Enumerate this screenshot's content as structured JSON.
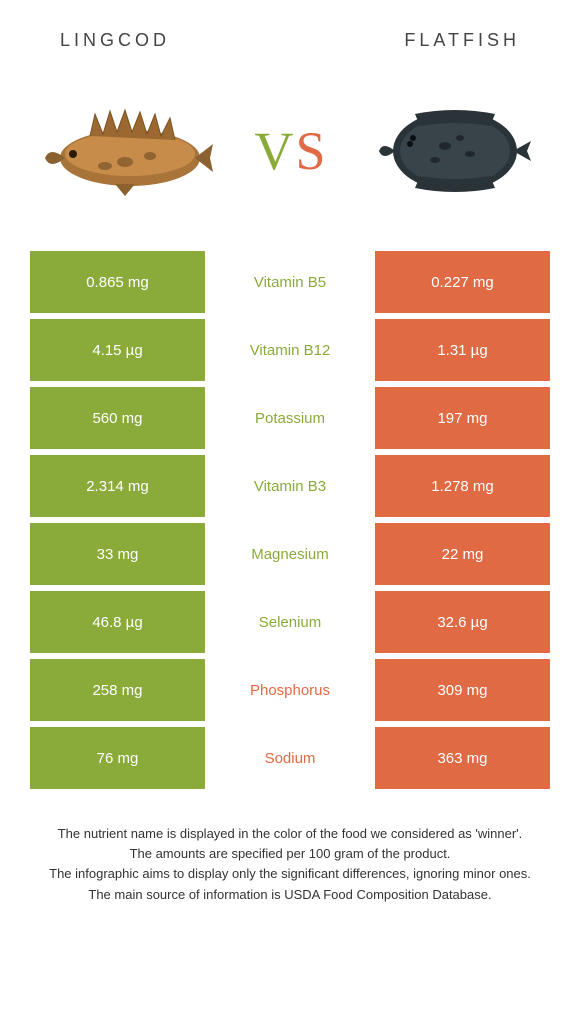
{
  "colors": {
    "left": "#8aab3a",
    "right": "#e06a44",
    "background": "#ffffff"
  },
  "header": {
    "left_title": "Lingcod",
    "right_title": "Flatfish"
  },
  "vs": {
    "v": "V",
    "s": "S"
  },
  "rows": [
    {
      "left": "0.865 mg",
      "label": "Vitamin B5",
      "right": "0.227 mg",
      "winner": "left"
    },
    {
      "left": "4.15 µg",
      "label": "Vitamin B12",
      "right": "1.31 µg",
      "winner": "left"
    },
    {
      "left": "560 mg",
      "label": "Potassium",
      "right": "197 mg",
      "winner": "left"
    },
    {
      "left": "2.314 mg",
      "label": "Vitamin B3",
      "right": "1.278 mg",
      "winner": "left"
    },
    {
      "left": "33 mg",
      "label": "Magnesium",
      "right": "22 mg",
      "winner": "left"
    },
    {
      "left": "46.8 µg",
      "label": "Selenium",
      "right": "32.6 µg",
      "winner": "left"
    },
    {
      "left": "258 mg",
      "label": "Phosphorus",
      "right": "309 mg",
      "winner": "right"
    },
    {
      "left": "76 mg",
      "label": "Sodium",
      "right": "363 mg",
      "winner": "right"
    }
  ],
  "footer": {
    "line1": "The nutrient name is displayed in the color of the food we considered as 'winner'.",
    "line2": "The amounts are specified per 100 gram of the product.",
    "line3": "The infographic aims to display only the significant differences, ignoring minor ones.",
    "line4": "The main source of information is USDA Food Composition Database."
  }
}
